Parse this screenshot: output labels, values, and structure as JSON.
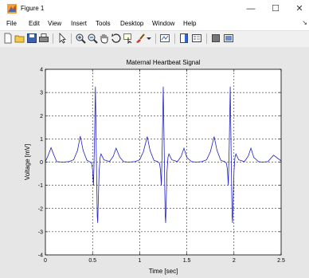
{
  "window": {
    "title": "Figure 1",
    "controls": {
      "minimize": "—",
      "maximize": "☐",
      "close": "✕"
    }
  },
  "menu": {
    "items": [
      "File",
      "Edit",
      "View",
      "Insert",
      "Tools",
      "Desktop",
      "Window",
      "Help"
    ],
    "overflow_glyph": "↘"
  },
  "toolbar": {
    "icons": [
      "new-figure-icon",
      "open-file-icon",
      "save-icon",
      "print-icon",
      "edit-plot-arrow-icon",
      "zoom-in-icon",
      "zoom-out-icon",
      "pan-hand-icon",
      "rotate-3d-icon",
      "data-cursor-icon",
      "brush-icon",
      "dropdown-arrow-icon",
      "link-plot-icon",
      "insert-colorbar-icon",
      "insert-legend-icon",
      "hide-plot-tools-icon",
      "show-plot-tools-icon"
    ]
  },
  "colors": {
    "trace": "#1f1fc8",
    "figure_bg": "#e6e6e6",
    "axes_bg": "#ffffff"
  },
  "chart_data": {
    "type": "line",
    "title": "Maternal Heartbeat Signal",
    "xlabel": "Time [sec]",
    "ylabel": "Voltage [mV]",
    "xlim": [
      0,
      2.5
    ],
    "ylim": [
      -4,
      4
    ],
    "xticks": [
      0,
      0.5,
      1,
      1.5,
      2,
      2.5
    ],
    "xtick_labels": [
      "0",
      "0.5",
      "1",
      "1.5",
      "2",
      "2.5"
    ],
    "yticks": [
      -4,
      -3,
      -2,
      -1,
      0,
      1,
      2,
      3,
      4
    ],
    "ytick_labels": [
      "-4",
      "-3",
      "-2",
      "-1",
      "0",
      "1",
      "2",
      "3",
      "4"
    ],
    "grid": true,
    "series": [
      {
        "x": [
          0,
          0.03,
          0.06,
          0.09,
          0.12,
          0.18,
          0.25,
          0.3,
          0.34,
          0.37,
          0.4,
          0.44,
          0.47,
          0.49,
          0.5,
          0.51,
          0.52,
          0.53,
          0.54,
          0.55,
          0.555,
          0.56,
          0.57,
          0.58,
          0.59,
          0.62,
          0.68,
          0.72,
          0.75,
          0.79,
          0.83,
          0.88,
          0.95,
          1.0,
          1.04,
          1.08,
          1.11,
          1.15,
          1.19,
          1.21,
          1.22,
          1.23,
          1.24,
          1.25,
          1.26,
          1.27,
          1.275,
          1.28,
          1.29,
          1.3,
          1.31,
          1.34,
          1.4,
          1.44,
          1.47,
          1.5,
          1.55,
          1.6,
          1.66,
          1.71,
          1.75,
          1.79,
          1.82,
          1.86,
          1.9,
          1.92,
          1.93,
          1.94,
          1.95,
          1.96,
          1.97,
          1.98,
          1.985,
          1.99,
          2.0,
          2.01,
          2.02,
          2.05,
          2.11,
          2.15,
          2.18,
          2.21,
          2.26,
          2.3,
          2.36,
          2.42,
          2.5
        ],
        "y": [
          0.02,
          0.3,
          0.62,
          0.3,
          0.02,
          0.0,
          0.02,
          0.1,
          0.5,
          1.12,
          0.5,
          0.08,
          0.02,
          -0.05,
          -0.3,
          -1.0,
          0.8,
          3.25,
          0.5,
          -2.3,
          -2.62,
          -1.8,
          -0.4,
          0.2,
          0.35,
          0.1,
          0.02,
          0.25,
          0.6,
          0.2,
          0.02,
          0.0,
          0.02,
          0.1,
          0.45,
          1.1,
          0.5,
          0.08,
          0.02,
          -0.05,
          -0.3,
          -1.0,
          0.8,
          3.25,
          0.5,
          -2.3,
          -2.62,
          -1.8,
          -0.4,
          0.2,
          0.35,
          0.1,
          0.02,
          0.25,
          0.6,
          0.2,
          0.02,
          0.0,
          0.02,
          0.1,
          0.45,
          1.1,
          0.5,
          0.08,
          0.02,
          -0.05,
          -0.3,
          -1.0,
          0.8,
          3.25,
          0.5,
          -2.3,
          -2.62,
          -1.8,
          -0.4,
          0.2,
          0.35,
          0.1,
          0.02,
          0.25,
          0.6,
          0.2,
          0.02,
          0.0,
          0.02,
          0.3,
          0.05
        ]
      }
    ]
  }
}
